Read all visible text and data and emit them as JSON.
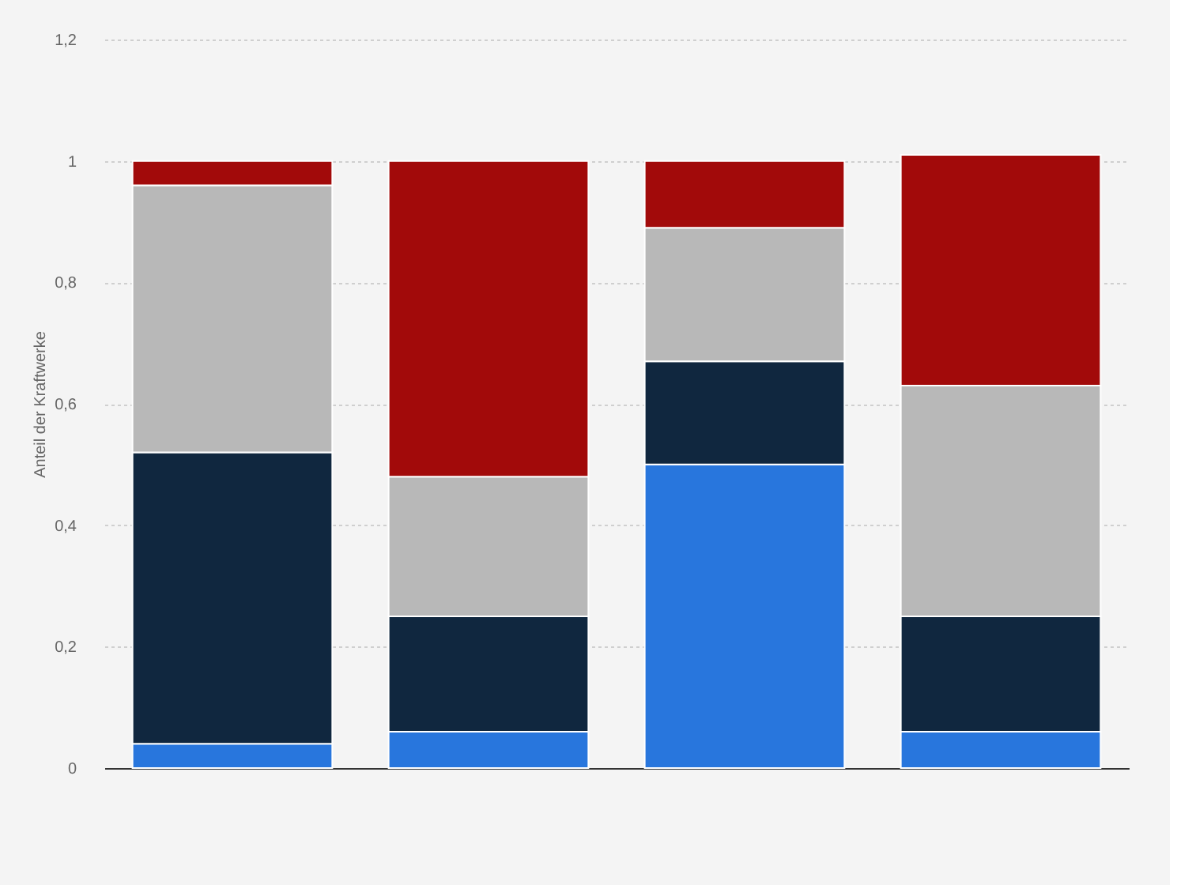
{
  "chart_data": {
    "type": "bar",
    "stacked": true,
    "ylabel": "Anteil der Kraftwerke",
    "categories": [
      null,
      null,
      null,
      null
    ],
    "series": [
      {
        "color": "#2876dd",
        "values": [
          0.04,
          0.06,
          0.5,
          0.06
        ]
      },
      {
        "color": "#10273f",
        "values": [
          0.48,
          0.19,
          0.17,
          0.19
        ]
      },
      {
        "color": "#b8b8b8",
        "values": [
          0.44,
          0.23,
          0.22,
          0.38
        ]
      },
      {
        "color": "#a20a0a",
        "values": [
          0.04,
          0.52,
          0.11,
          0.38
        ]
      }
    ],
    "ylim": [
      0,
      1.2
    ],
    "yticks": [
      0,
      {
        "value": 0.2,
        "label": "0,2"
      },
      {
        "value": 0.4,
        "label": "0,4"
      },
      {
        "value": 0.6,
        "label": "0,6"
      },
      {
        "value": 0.8,
        "label": "0,8"
      },
      1,
      {
        "value": 1.2,
        "label": "1,2"
      }
    ],
    "grid": "y",
    "legend": false,
    "tick_labels": "y"
  }
}
